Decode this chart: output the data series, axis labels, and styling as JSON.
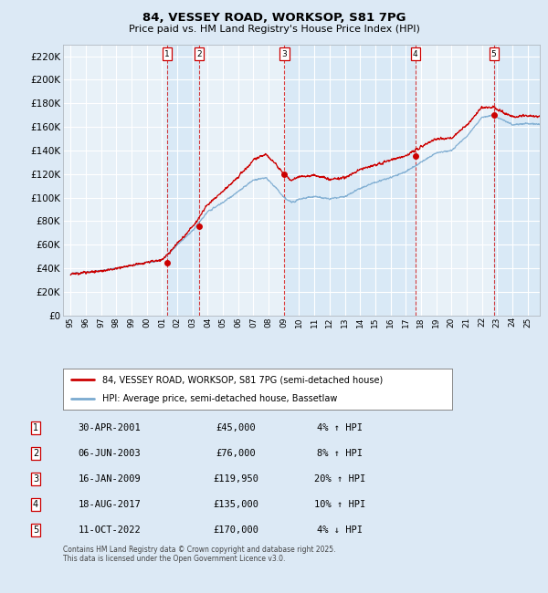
{
  "title": "84, VESSEY ROAD, WORKSOP, S81 7PG",
  "subtitle": "Price paid vs. HM Land Registry's House Price Index (HPI)",
  "legend_property": "84, VESSEY ROAD, WORKSOP, S81 7PG (semi-detached house)",
  "legend_hpi": "HPI: Average price, semi-detached house, Bassetlaw",
  "footer": "Contains HM Land Registry data © Crown copyright and database right 2025.\nThis data is licensed under the Open Government Licence v3.0.",
  "transactions": [
    {
      "num": 1,
      "date": "30-APR-2001",
      "price": 45000,
      "pct": "4%",
      "dir": "↑",
      "year": 2001.33
    },
    {
      "num": 2,
      "date": "06-JUN-2003",
      "price": 76000,
      "pct": "8%",
      "dir": "↑",
      "year": 2003.44
    },
    {
      "num": 3,
      "date": "16-JAN-2009",
      "price": 119950,
      "pct": "20%",
      "dir": "↑",
      "year": 2009.04
    },
    {
      "num": 4,
      "date": "18-AUG-2017",
      "price": 135000,
      "pct": "10%",
      "dir": "↑",
      "year": 2017.63
    },
    {
      "num": 5,
      "date": "11-OCT-2022",
      "price": 170000,
      "pct": "4%",
      "dir": "↓",
      "year": 2022.78
    }
  ],
  "ylim": [
    0,
    230000
  ],
  "ytick_step": 20000,
  "xmin": 1994.5,
  "xmax": 2025.8,
  "bg_color": "#dce9f5",
  "plot_bg": "#e8f1f8",
  "grid_color": "#ffffff",
  "hpi_color": "#7aaad0",
  "price_color": "#cc0000",
  "dashed_color": "#cc0000",
  "label_box_color": "#cc0000",
  "band_color": "#d0e4f5"
}
